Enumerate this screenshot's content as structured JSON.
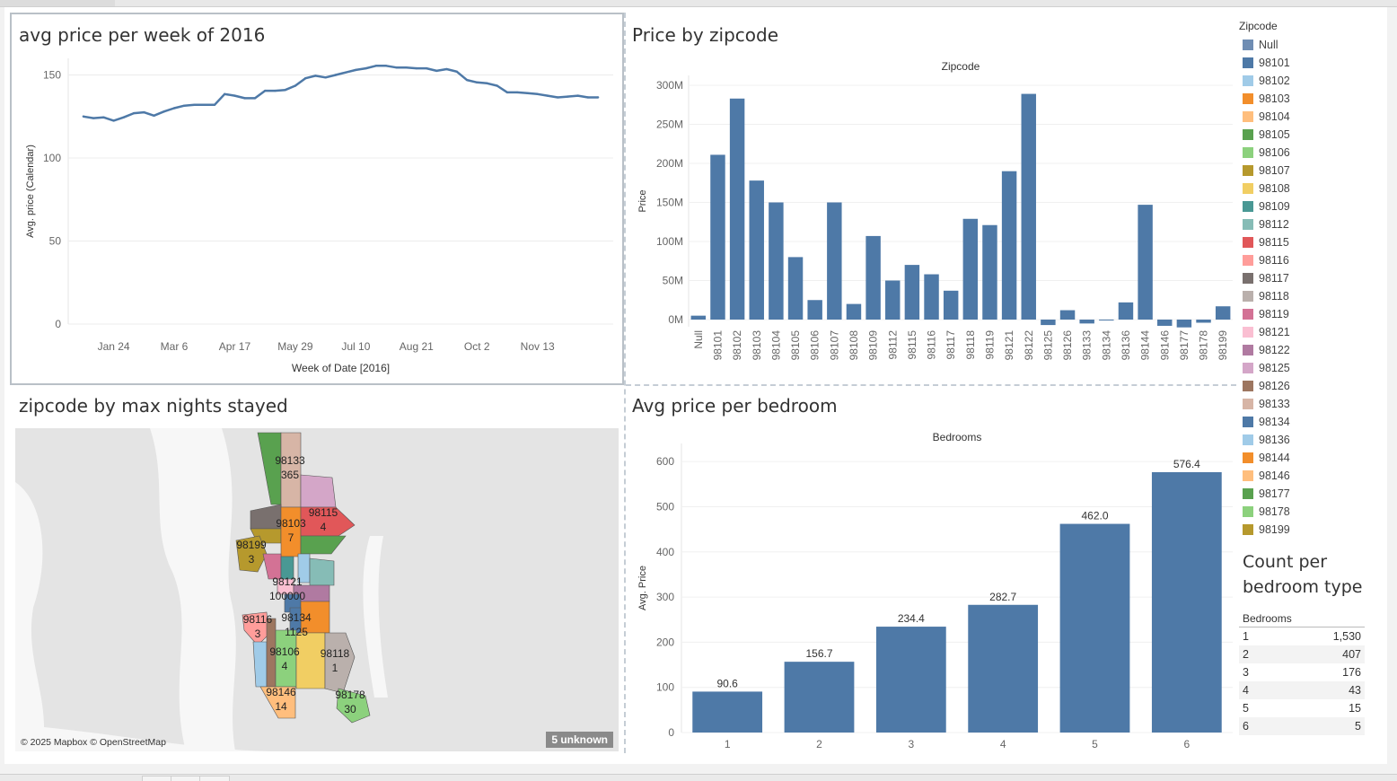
{
  "panels": {
    "line_title": "avg price per week of 2016",
    "zip_title": "Price by zipcode",
    "map_title": "zipcode by max nights stayed",
    "bed_title": "Avg price per bedroom",
    "count_title": "Count per bedroom type"
  },
  "legend": {
    "title": "Zipcode",
    "items": [
      {
        "label": "Null",
        "color": "#6f8db3"
      },
      {
        "label": "98101",
        "color": "#4e79a7"
      },
      {
        "label": "98102",
        "color": "#a0cbe8"
      },
      {
        "label": "98103",
        "color": "#f28e2b"
      },
      {
        "label": "98104",
        "color": "#ffbe7d"
      },
      {
        "label": "98105",
        "color": "#59a14f"
      },
      {
        "label": "98106",
        "color": "#8cd17d"
      },
      {
        "label": "98107",
        "color": "#b6992d"
      },
      {
        "label": "98108",
        "color": "#f1ce63"
      },
      {
        "label": "98109",
        "color": "#499894"
      },
      {
        "label": "98112",
        "color": "#86bcb6"
      },
      {
        "label": "98115",
        "color": "#e15759"
      },
      {
        "label": "98116",
        "color": "#ff9d9a"
      },
      {
        "label": "98117",
        "color": "#79706e"
      },
      {
        "label": "98118",
        "color": "#bab0ac"
      },
      {
        "label": "98119",
        "color": "#d37295"
      },
      {
        "label": "98121",
        "color": "#fabfd2"
      },
      {
        "label": "98122",
        "color": "#b07aa1"
      },
      {
        "label": "98125",
        "color": "#d4a6c8"
      },
      {
        "label": "98126",
        "color": "#9d7660"
      },
      {
        "label": "98133",
        "color": "#d7b5a6"
      },
      {
        "label": "98134",
        "color": "#4e79a7"
      },
      {
        "label": "98136",
        "color": "#a0cbe8"
      },
      {
        "label": "98144",
        "color": "#f28e2b"
      },
      {
        "label": "98146",
        "color": "#ffbe7d"
      },
      {
        "label": "98177",
        "color": "#59a14f"
      },
      {
        "label": "98178",
        "color": "#8cd17d"
      },
      {
        "label": "98199",
        "color": "#b6992d"
      }
    ]
  },
  "map": {
    "attribution": "© 2025 Mapbox © OpenStreetMap",
    "unknown_badge": "5 unknown",
    "labels": [
      {
        "zip": "98133",
        "value": "365"
      },
      {
        "zip": "98115",
        "value": "4"
      },
      {
        "zip": "98103",
        "value": "7"
      },
      {
        "zip": "98199",
        "value": "3"
      },
      {
        "zip": "98121",
        "value": "100000"
      },
      {
        "zip": "98116",
        "value": "3"
      },
      {
        "zip": "98134",
        "value": "1125"
      },
      {
        "zip": "98106",
        "value": "4"
      },
      {
        "zip": "98118",
        "value": "1"
      },
      {
        "zip": "98146",
        "value": "14"
      },
      {
        "zip": "98178",
        "value": "30"
      }
    ]
  },
  "count_table": {
    "header": "Bedrooms",
    "rows": [
      {
        "bedrooms": "1",
        "count": "1,530"
      },
      {
        "bedrooms": "2",
        "count": "407"
      },
      {
        "bedrooms": "3",
        "count": "176"
      },
      {
        "bedrooms": "4",
        "count": "43"
      },
      {
        "bedrooms": "5",
        "count": "15"
      },
      {
        "bedrooms": "6",
        "count": "5"
      }
    ]
  },
  "chart_data": [
    {
      "type": "line",
      "title": "avg price per week of 2016",
      "xlabel": "Week of Date [2016]",
      "ylabel": "Avg. price (Calendar)",
      "ylim": [
        0,
        160
      ],
      "yticks": [
        0,
        50,
        100,
        150
      ],
      "xticks": [
        {
          "label": "Jan 24",
          "week": 4
        },
        {
          "label": "Mar 6",
          "week": 10
        },
        {
          "label": "Apr 17",
          "week": 16
        },
        {
          "label": "May 29",
          "week": 22
        },
        {
          "label": "Jul 10",
          "week": 28
        },
        {
          "label": "Aug 21",
          "week": 34
        },
        {
          "label": "Oct 2",
          "week": 40
        },
        {
          "label": "Nov 13",
          "week": 46
        }
      ],
      "week_range": [
        -0.5,
        53.5
      ],
      "weeks": [
        1,
        2,
        3,
        4,
        5,
        6,
        7,
        8,
        9,
        10,
        11,
        12,
        13,
        14,
        15,
        16,
        17,
        18,
        19,
        20,
        21,
        22,
        23,
        24,
        25,
        26,
        27,
        28,
        29,
        30,
        31,
        32,
        33,
        34,
        35,
        36,
        37,
        38,
        39,
        40,
        41,
        42,
        43,
        44,
        45,
        46,
        47,
        48,
        49,
        50,
        51,
        52
      ],
      "values": [
        125,
        124,
        124.5,
        122.5,
        124.5,
        127,
        127.5,
        125.5,
        128,
        130,
        131.5,
        132,
        132,
        132,
        138.5,
        137.5,
        136,
        136,
        140.5,
        140.5,
        141,
        143.5,
        148,
        149.5,
        148.5,
        150,
        151.5,
        153,
        154,
        155.5,
        155.5,
        154.5,
        154.5,
        154,
        154,
        152.5,
        153.5,
        152,
        147,
        145.5,
        145,
        143.5,
        139.5,
        139.5,
        139,
        138.5,
        137.5,
        136.5,
        137,
        137.5,
        136.5,
        136.5
      ],
      "grid": true
    },
    {
      "type": "bar",
      "title": "Zipcode",
      "ylabel": "Price",
      "ylim": [
        -10,
        300
      ],
      "yticks": [
        {
          "v": 0,
          "label": "0M"
        },
        {
          "v": 50,
          "label": "50M"
        },
        {
          "v": 100,
          "label": "100M"
        },
        {
          "v": 150,
          "label": "150M"
        },
        {
          "v": 200,
          "label": "200M"
        },
        {
          "v": 250,
          "label": "250M"
        },
        {
          "v": 300,
          "label": "300M"
        }
      ],
      "categories": [
        "Null",
        "98101",
        "98102",
        "98103",
        "98104",
        "98105",
        "98106",
        "98107",
        "98108",
        "98109",
        "98112",
        "98115",
        "98116",
        "98117",
        "98118",
        "98119",
        "98121",
        "98122",
        "98125",
        "98126",
        "98133",
        "98134",
        "98136",
        "98144",
        "98146",
        "98177",
        "98178",
        "98199"
      ],
      "values": [
        5,
        211,
        283,
        178,
        150,
        80,
        25,
        150,
        20,
        107,
        50,
        70,
        58,
        37,
        129,
        121,
        190,
        289,
        -7,
        12,
        -5,
        0,
        22,
        147,
        -8,
        -10,
        -4,
        17
      ],
      "unit": "M",
      "color": "#4e79a7"
    },
    {
      "type": "bar",
      "title": "Bedrooms",
      "ylabel": "Avg. Price",
      "ylim": [
        0,
        640
      ],
      "yticks": [
        0,
        100,
        200,
        300,
        400,
        500,
        600
      ],
      "categories": [
        "1",
        "2",
        "3",
        "4",
        "5",
        "6"
      ],
      "values": [
        90.6,
        156.7,
        234.4,
        282.7,
        462.0,
        576.4
      ],
      "data_labels": [
        "90.6",
        "156.7",
        "234.4",
        "282.7",
        "462.0",
        "576.4"
      ],
      "color": "#4e79a7"
    }
  ]
}
